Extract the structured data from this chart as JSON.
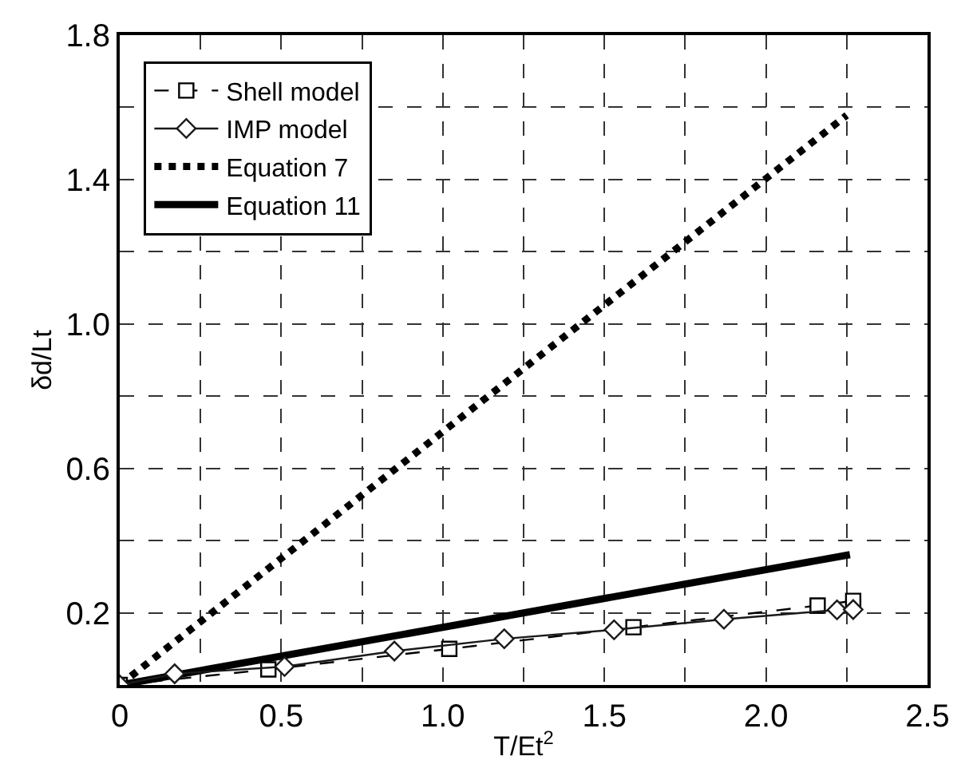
{
  "chart_data": {
    "type": "line",
    "xlabel": "T/Et$^{2}$",
    "ylabel": "δd/Lt",
    "xlim": [
      0,
      2.5
    ],
    "ylim": [
      0,
      1.8
    ],
    "xticks": [
      0,
      {
        "value": 0.25,
        "label": null
      },
      0.5,
      {
        "value": 0.75,
        "label": null
      },
      {
        "value": 1.0,
        "label": "1.0"
      },
      {
        "value": 1.25,
        "label": null
      },
      1.5,
      {
        "value": 1.75,
        "label": null
      },
      {
        "value": 2.0,
        "label": "2.0"
      },
      {
        "value": 2.25,
        "label": null
      },
      2.5
    ],
    "yticks": [
      {
        "value": 0.2,
        "label": "0.2"
      },
      {
        "value": 0.4,
        "label": null
      },
      {
        "value": 0.6,
        "label": "0.6"
      },
      {
        "value": 0.8,
        "label": null
      },
      {
        "value": 1.0,
        "label": "1.0"
      },
      {
        "value": 1.2,
        "label": null
      },
      {
        "value": 1.4,
        "label": "1.4"
      },
      {
        "value": 1.6,
        "label": null
      },
      {
        "value": 1.8,
        "label": "1.8"
      }
    ],
    "grid": true,
    "legend": "top left",
    "series": [
      {
        "name": "Shell model",
        "color": "#000000",
        "marker": "square",
        "line_style": "dashed",
        "x": [
          0,
          0.46,
          1.02,
          1.59,
          2.16,
          2.27
        ],
        "values": [
          0,
          0.043,
          0.1,
          0.16,
          0.22,
          0.233
        ]
      },
      {
        "name": "IMP model",
        "color": "#1a1a1a",
        "marker": "diamond",
        "line_style": "solid",
        "x": [
          0,
          0.17,
          0.51,
          0.85,
          1.19,
          1.53,
          1.87,
          2.22,
          2.27
        ],
        "values": [
          0,
          0.031,
          0.051,
          0.094,
          0.128,
          0.153,
          0.182,
          0.208,
          0.209
        ]
      },
      {
        "name": "Equation 7",
        "color": "#000000",
        "marker": "none",
        "line_style": "dotted",
        "x": [
          0,
          2.25
        ],
        "values": [
          0,
          1.578
        ]
      },
      {
        "name": "Equation 11",
        "color": "#000000",
        "marker": "none",
        "line_style": "solid",
        "x": [
          0,
          2.26
        ],
        "values": [
          0,
          0.361
        ]
      }
    ]
  }
}
